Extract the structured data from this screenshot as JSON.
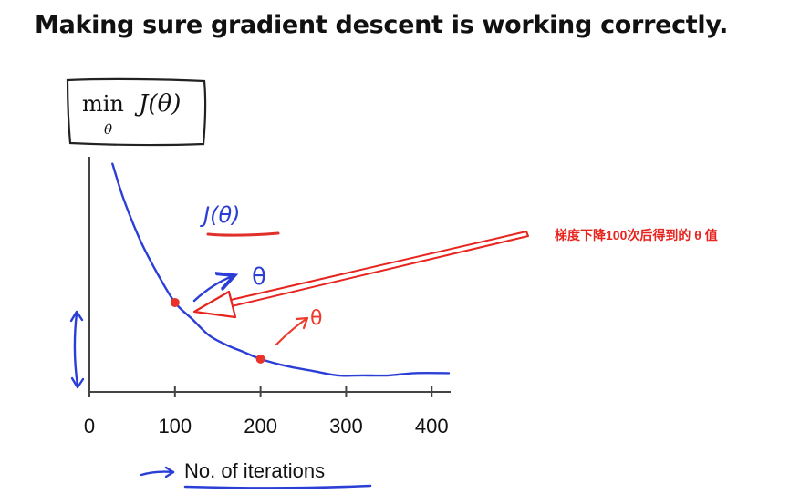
{
  "title": "Making sure gradient descent is working correctly.",
  "formula": {
    "operator": "min",
    "subscript": "θ",
    "function": "J(θ)"
  },
  "handwritten": {
    "curve_label": "J(θ)",
    "theta_blue": "θ",
    "theta_red": "θ"
  },
  "annotation": {
    "text": "梯度下降100次后得到的 θ 值",
    "color": "#e8241e"
  },
  "colors": {
    "curve": "#2b3fd6",
    "marker": "#e8322a",
    "axis": "#444444",
    "annotation": "#e8241e"
  },
  "chart_data": {
    "type": "line",
    "title": "",
    "xlabel": "No. of iterations",
    "ylabel": "",
    "xlim": [
      0,
      420
    ],
    "ylim": [
      0,
      1
    ],
    "x_ticks": [
      "0",
      "100",
      "200",
      "300",
      "400"
    ],
    "x_tick_values": [
      0,
      100,
      200,
      300,
      400
    ],
    "series": [
      {
        "x": [
          27,
          40,
          60,
          80,
          100,
          120,
          140,
          160,
          180,
          200,
          230,
          260,
          290,
          320,
          350,
          380,
          420
        ],
        "y": [
          0.97,
          0.82,
          0.64,
          0.5,
          0.38,
          0.31,
          0.24,
          0.2,
          0.17,
          0.14,
          0.11,
          0.09,
          0.07,
          0.07,
          0.07,
          0.08,
          0.08
        ]
      }
    ],
    "highlighted_points": [
      {
        "x": 100,
        "y": 0.38
      },
      {
        "x": 200,
        "y": 0.14
      }
    ]
  }
}
